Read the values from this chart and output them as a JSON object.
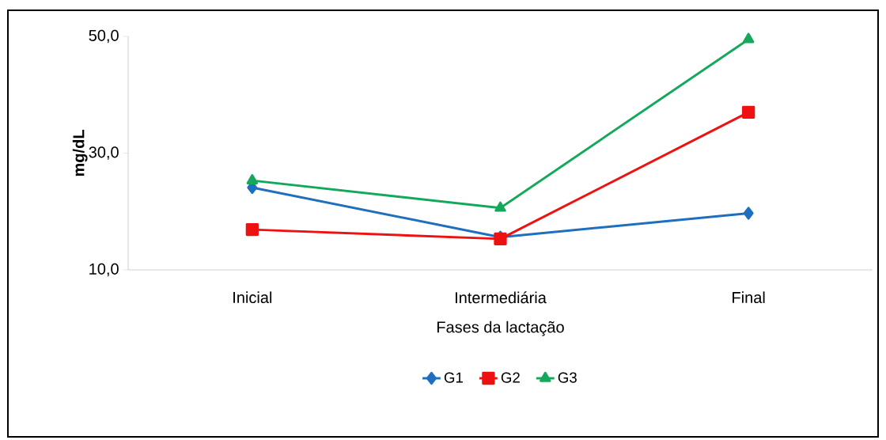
{
  "chart_data": {
    "type": "line",
    "xlabel": "Fases da lactação",
    "ylabel": "mg/dL",
    "categories": [
      "Inicial",
      "Intermediária",
      "Final"
    ],
    "series": [
      {
        "name": "G1",
        "color": "#1f6fbf",
        "marker": "diamond",
        "values": [
          24.1,
          15.6,
          19.7
        ]
      },
      {
        "name": "G2",
        "color": "#ee1111",
        "marker": "square",
        "values": [
          16.9,
          15.3,
          37.0
        ]
      },
      {
        "name": "G3",
        "color": "#14a85a",
        "marker": "triangle",
        "values": [
          25.3,
          20.6,
          49.5
        ]
      }
    ],
    "ylim": [
      10,
      50
    ],
    "yticks": [
      {
        "value": 10,
        "label": "10,0"
      },
      {
        "value": 30,
        "label": "30,0"
      },
      {
        "value": 50,
        "label": "50,0"
      }
    ],
    "legend": "bottom",
    "line_style": "solid"
  }
}
